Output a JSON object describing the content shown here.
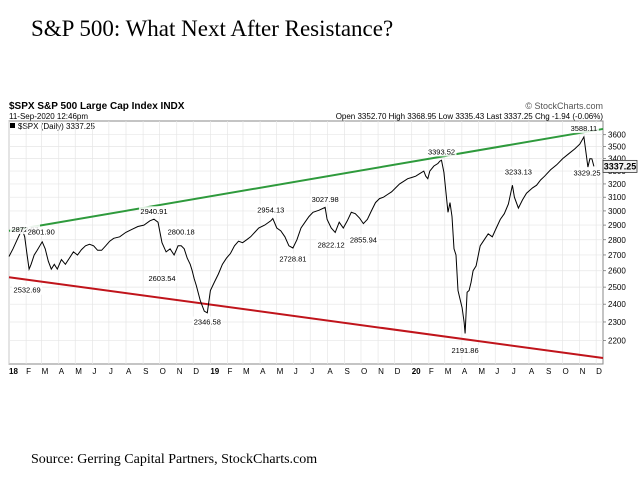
{
  "page": {
    "title": "S&P 500: What Next After Resistance?",
    "source": "Source: Gerring Capital Partners, StockCharts.com"
  },
  "chart_header": {
    "symbol_line": "$SPX S&P 500 Large Cap Index INDX",
    "stockcharts": "© StockCharts.com",
    "date_line": "11-Sep-2020 12:46pm",
    "ohlc_line": "Open 3352.70  High 3368.95  Low 3335.43  Last 3337.25  Chg -1.94 (-0.06%)",
    "legend": "$SPX (Daily) 3337.25",
    "last_badge": "3337.25"
  },
  "colors": {
    "price": "#000000",
    "down_day": "#d0021b",
    "resistance": "#2e9a3c",
    "support": "#c0141b",
    "grid": "#e6e6e6",
    "badge_bg": "#f2f2f2"
  },
  "chart_data": {
    "type": "line",
    "title": "",
    "xlabel": "",
    "ylabel": "",
    "x_range": [
      2018.0,
      2020.95
    ],
    "ylim": [
      2080,
      3720
    ],
    "log_scale": true,
    "grid": true,
    "y_ticks": [
      2200,
      2300,
      2400,
      2500,
      2600,
      2700,
      2800,
      2900,
      3000,
      3100,
      3200,
      3300,
      3400,
      3500,
      3600
    ],
    "x_ticks": [
      {
        "t": 2018.0,
        "label": "18"
      },
      {
        "t": 2018.085,
        "label": "F"
      },
      {
        "t": 2018.162,
        "label": "M"
      },
      {
        "t": 2018.247,
        "label": "A"
      },
      {
        "t": 2018.329,
        "label": "M"
      },
      {
        "t": 2018.414,
        "label": "J"
      },
      {
        "t": 2018.496,
        "label": "J"
      },
      {
        "t": 2018.581,
        "label": "A"
      },
      {
        "t": 2018.666,
        "label": "S"
      },
      {
        "t": 2018.748,
        "label": "O"
      },
      {
        "t": 2018.833,
        "label": "N"
      },
      {
        "t": 2018.915,
        "label": "D"
      },
      {
        "t": 2019.0,
        "label": "19"
      },
      {
        "t": 2019.085,
        "label": "F"
      },
      {
        "t": 2019.162,
        "label": "M"
      },
      {
        "t": 2019.247,
        "label": "A"
      },
      {
        "t": 2019.329,
        "label": "M"
      },
      {
        "t": 2019.414,
        "label": "J"
      },
      {
        "t": 2019.496,
        "label": "J"
      },
      {
        "t": 2019.581,
        "label": "A"
      },
      {
        "t": 2019.666,
        "label": "S"
      },
      {
        "t": 2019.748,
        "label": "O"
      },
      {
        "t": 2019.833,
        "label": "N"
      },
      {
        "t": 2019.915,
        "label": "D"
      },
      {
        "t": 2020.0,
        "label": "20"
      },
      {
        "t": 2020.085,
        "label": "F"
      },
      {
        "t": 2020.164,
        "label": "M"
      },
      {
        "t": 2020.249,
        "label": "A"
      },
      {
        "t": 2020.331,
        "label": "M"
      },
      {
        "t": 2020.415,
        "label": "J"
      },
      {
        "t": 2020.497,
        "label": "J"
      },
      {
        "t": 2020.582,
        "label": "A"
      },
      {
        "t": 2020.667,
        "label": "S"
      },
      {
        "t": 2020.749,
        "label": "O"
      },
      {
        "t": 2020.834,
        "label": "N"
      },
      {
        "t": 2020.916,
        "label": "D"
      }
    ],
    "series": [
      {
        "values": [
          [
            2018.0,
            2690
          ],
          [
            2018.02,
            2740
          ],
          [
            2018.04,
            2800
          ],
          [
            2018.065,
            2872.87
          ],
          [
            2018.078,
            2820
          ],
          [
            2018.09,
            2700
          ],
          [
            2018.1,
            2610
          ],
          [
            2018.11,
            2640
          ],
          [
            2018.125,
            2700
          ],
          [
            2018.14,
            2730
          ],
          [
            2018.165,
            2786
          ],
          [
            2018.18,
            2740
          ],
          [
            2018.195,
            2660
          ],
          [
            2018.21,
            2610
          ],
          [
            2018.225,
            2640
          ],
          [
            2018.24,
            2610
          ],
          [
            2018.26,
            2670
          ],
          [
            2018.28,
            2640
          ],
          [
            2018.3,
            2680
          ],
          [
            2018.32,
            2720
          ],
          [
            2018.34,
            2700
          ],
          [
            2018.36,
            2735
          ],
          [
            2018.38,
            2760
          ],
          [
            2018.4,
            2770
          ],
          [
            2018.42,
            2760
          ],
          [
            2018.44,
            2730
          ],
          [
            2018.46,
            2730
          ],
          [
            2018.48,
            2760
          ],
          [
            2018.5,
            2790
          ],
          [
            2018.52,
            2810
          ],
          [
            2018.55,
            2820
          ],
          [
            2018.58,
            2850
          ],
          [
            2018.61,
            2870
          ],
          [
            2018.64,
            2890
          ],
          [
            2018.67,
            2900
          ],
          [
            2018.7,
            2930
          ],
          [
            2018.72,
            2940.91
          ],
          [
            2018.74,
            2920
          ],
          [
            2018.76,
            2780
          ],
          [
            2018.78,
            2720
          ],
          [
            2018.8,
            2740
          ],
          [
            2018.82,
            2700
          ],
          [
            2018.84,
            2760
          ],
          [
            2018.855,
            2760
          ],
          [
            2018.87,
            2740
          ],
          [
            2018.885,
            2680
          ],
          [
            2018.9,
            2640
          ],
          [
            2018.91,
            2600
          ],
          [
            2018.92,
            2550
          ],
          [
            2018.93,
            2510
          ],
          [
            2018.95,
            2420
          ],
          [
            2018.97,
            2360
          ],
          [
            2018.985,
            2351.1
          ],
          [
            2019.0,
            2480
          ],
          [
            2019.02,
            2530
          ],
          [
            2019.04,
            2580
          ],
          [
            2019.06,
            2640
          ],
          [
            2019.08,
            2680
          ],
          [
            2019.1,
            2710
          ],
          [
            2019.12,
            2760
          ],
          [
            2019.14,
            2790
          ],
          [
            2019.16,
            2780
          ],
          [
            2019.18,
            2800
          ],
          [
            2019.2,
            2820
          ],
          [
            2019.22,
            2850
          ],
          [
            2019.24,
            2880
          ],
          [
            2019.27,
            2900
          ],
          [
            2019.3,
            2930
          ],
          [
            2019.31,
            2945
          ],
          [
            2019.33,
            2880
          ],
          [
            2019.35,
            2860
          ],
          [
            2019.37,
            2820
          ],
          [
            2019.39,
            2760
          ],
          [
            2019.41,
            2745
          ],
          [
            2019.43,
            2800
          ],
          [
            2019.45,
            2880
          ],
          [
            2019.47,
            2920
          ],
          [
            2019.49,
            2960
          ],
          [
            2019.51,
            2990
          ],
          [
            2019.54,
            3005
          ],
          [
            2019.57,
            3025
          ],
          [
            2019.58,
            2940
          ],
          [
            2019.6,
            2880
          ],
          [
            2019.62,
            2850
          ],
          [
            2019.64,
            2920
          ],
          [
            2019.66,
            2880
          ],
          [
            2019.68,
            2930
          ],
          [
            2019.7,
            2990
          ],
          [
            2019.72,
            2980
          ],
          [
            2019.74,
            2950
          ],
          [
            2019.76,
            2910
          ],
          [
            2019.78,
            2940
          ],
          [
            2019.8,
            3000
          ],
          [
            2019.82,
            3060
          ],
          [
            2019.84,
            3090
          ],
          [
            2019.86,
            3100
          ],
          [
            2019.88,
            3120
          ],
          [
            2019.9,
            3140
          ],
          [
            2019.92,
            3170
          ],
          [
            2019.94,
            3200
          ],
          [
            2019.96,
            3220
          ],
          [
            2019.98,
            3240
          ],
          [
            2020.0,
            3250
          ],
          [
            2020.02,
            3260
          ],
          [
            2020.04,
            3280
          ],
          [
            2020.06,
            3300
          ],
          [
            2020.07,
            3260
          ],
          [
            2020.08,
            3240
          ],
          [
            2020.09,
            3300
          ],
          [
            2020.11,
            3340
          ],
          [
            2020.13,
            3360
          ],
          [
            2020.14,
            3380
          ],
          [
            2020.148,
            3386.15
          ],
          [
            2020.16,
            3290
          ],
          [
            2020.17,
            3140
          ],
          [
            2020.18,
            2990
          ],
          [
            2020.19,
            3060
          ],
          [
            2020.2,
            2960
          ],
          [
            2020.21,
            2740
          ],
          [
            2020.22,
            2700
          ],
          [
            2020.23,
            2480
          ],
          [
            2020.24,
            2430
          ],
          [
            2020.25,
            2380
          ],
          [
            2020.26,
            2300
          ],
          [
            2020.265,
            2237.4
          ],
          [
            2020.275,
            2470
          ],
          [
            2020.285,
            2480
          ],
          [
            2020.295,
            2530
          ],
          [
            2020.305,
            2600
          ],
          [
            2020.32,
            2630
          ],
          [
            2020.34,
            2760
          ],
          [
            2020.36,
            2800
          ],
          [
            2020.38,
            2840
          ],
          [
            2020.4,
            2820
          ],
          [
            2020.42,
            2880
          ],
          [
            2020.44,
            2940
          ],
          [
            2020.46,
            2980
          ],
          [
            2020.48,
            3050
          ],
          [
            2020.5,
            3190
          ],
          [
            2020.51,
            3100
          ],
          [
            2020.53,
            3020
          ],
          [
            2020.55,
            3080
          ],
          [
            2020.57,
            3130
          ],
          [
            2020.6,
            3170
          ],
          [
            2020.62,
            3190
          ],
          [
            2020.64,
            3230
          ],
          [
            2020.66,
            3260
          ],
          [
            2020.69,
            3310
          ],
          [
            2020.72,
            3350
          ],
          [
            2020.75,
            3400
          ],
          [
            2020.78,
            3440
          ],
          [
            2020.81,
            3480
          ],
          [
            2020.835,
            3520
          ],
          [
            2020.855,
            3580.84
          ],
          [
            2020.865,
            3455
          ],
          [
            2020.875,
            3331.8
          ],
          [
            2020.885,
            3399
          ],
          [
            2020.895,
            3398
          ],
          [
            2020.905,
            3337.25
          ]
        ]
      }
    ],
    "annotations": [
      {
        "label": "2872.87",
        "t": 2018.065,
        "v": 2872.87,
        "pos": "left"
      },
      {
        "label": "2801.90",
        "t": 2018.16,
        "v": 2801.9,
        "pos": "above"
      },
      {
        "label": "2532.69",
        "t": 2018.09,
        "v": 2532.69,
        "pos": "below"
      },
      {
        "label": "2940.91",
        "t": 2018.72,
        "v": 2940.91,
        "pos": "above"
      },
      {
        "label": "2603.54",
        "t": 2018.76,
        "v": 2603.54,
        "pos": "below"
      },
      {
        "label": "2800.18",
        "t": 2018.855,
        "v": 2800.18,
        "pos": "above"
      },
      {
        "label": "2346.58",
        "t": 2018.985,
        "v": 2346.58,
        "pos": "below"
      },
      {
        "label": "2954.13",
        "t": 2019.3,
        "v": 2954.13,
        "pos": "above"
      },
      {
        "label": "2728.81",
        "t": 2019.41,
        "v": 2728.81,
        "pos": "below"
      },
      {
        "label": "3027.98",
        "t": 2019.57,
        "v": 3027.98,
        "pos": "above"
      },
      {
        "label": "2822.12",
        "t": 2019.6,
        "v": 2822.12,
        "pos": "below"
      },
      {
        "label": "2855.94",
        "t": 2019.76,
        "v": 2855.94,
        "pos": "below"
      },
      {
        "label": "3393.52",
        "t": 2020.148,
        "v": 3393.52,
        "pos": "above"
      },
      {
        "label": "2191.86",
        "t": 2020.265,
        "v": 2191.86,
        "pos": "below"
      },
      {
        "label": "3233.13",
        "t": 2020.53,
        "v": 3233.13,
        "pos": "above"
      },
      {
        "label": "3588.11",
        "t": 2020.855,
        "v": 3588.11,
        "pos": "above"
      },
      {
        "label": "3329.25",
        "t": 2020.875,
        "v": 3329.25,
        "pos": "right"
      }
    ],
    "trendlines": [
      {
        "name": "resistance",
        "from": [
          2018.0,
          2860
        ],
        "to": [
          2020.95,
          3650
        ]
      },
      {
        "name": "support",
        "from": [
          2018.0,
          2560
        ],
        "to": [
          2020.95,
          2110
        ]
      }
    ]
  }
}
